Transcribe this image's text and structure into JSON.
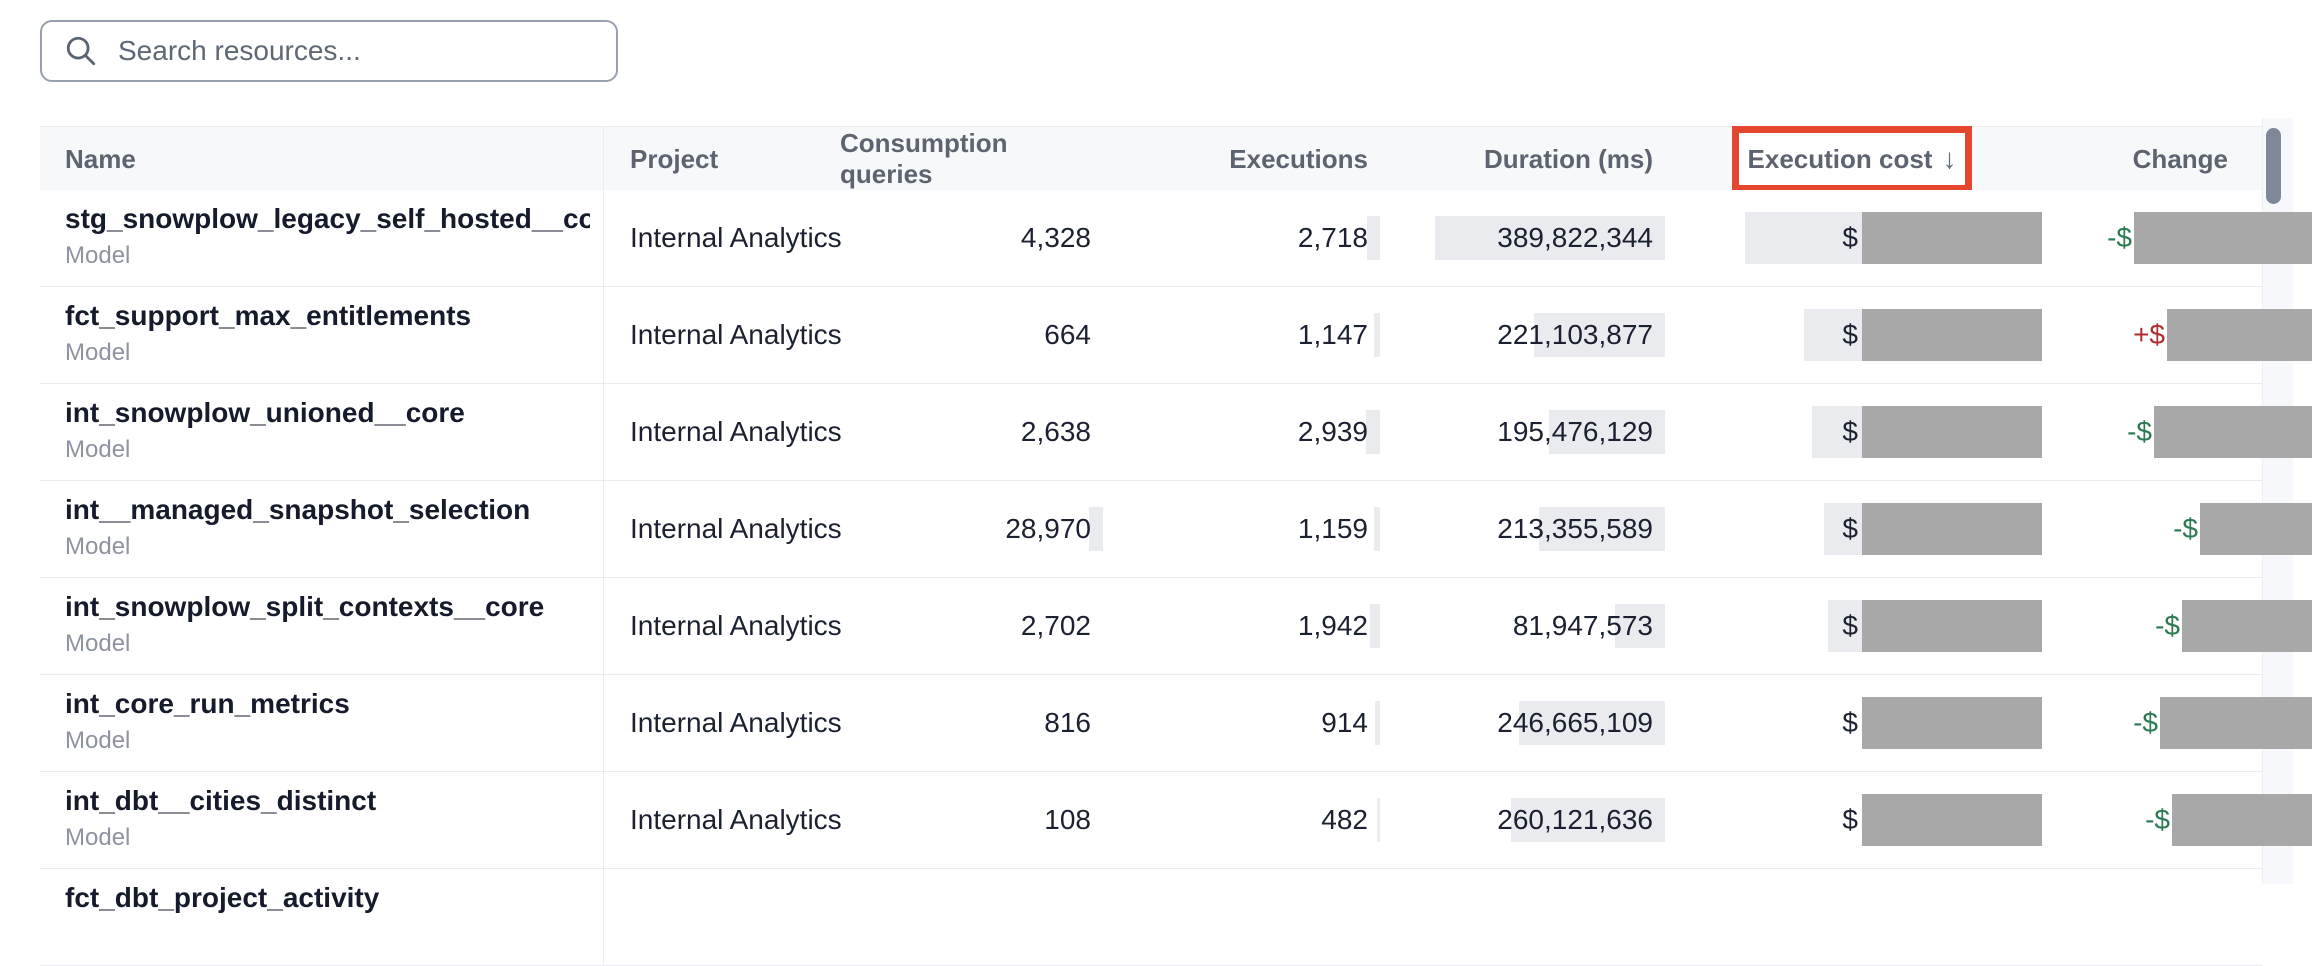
{
  "search": {
    "placeholder": "Search resources...",
    "icon": "search-icon"
  },
  "colors": {
    "annotation_red": "#e5472e",
    "redaction_gray": "#a8a8a8",
    "bar_gray": "#e9ebee",
    "positive_red": "#b02e2e",
    "negative_green": "#2a7a52",
    "header_bg": "#f7f8fa"
  },
  "scrollbar": {
    "thumb": "vertical-scrollbar-thumb"
  },
  "table": {
    "columns": [
      {
        "label": "Name"
      },
      {
        "label": "Project"
      },
      {
        "label": "Consumption queries"
      },
      {
        "label": "Executions"
      },
      {
        "label": "Duration (ms)"
      },
      {
        "label": "Execution cost",
        "sort_indicator": "↓",
        "highlighted": true
      },
      {
        "label": "Change"
      }
    ],
    "rows": [
      {
        "name": "stg_snowplow_legacy_self_hosted__cor...",
        "type": "Model",
        "project": "Internal Analytics",
        "consumption_queries": "4,328",
        "executions": "2,718",
        "duration_ms": "389,822,344",
        "cost_prefix": "$",
        "change_prefix": "-$",
        "change_color": "negative_green",
        "bars": {
          "cq": 0,
          "exec": 13,
          "dur": 230,
          "cost": 117,
          "change": 178
        }
      },
      {
        "name": "fct_support_max_entitlements",
        "type": "Model",
        "project": "Internal Analytics",
        "consumption_queries": "664",
        "executions": "1,147",
        "duration_ms": "221,103,877",
        "cost_prefix": "$",
        "change_prefix": "+$",
        "change_color": "positive_red",
        "bars": {
          "cq": 0,
          "exec": 6,
          "dur": 131,
          "cost": 58,
          "change": 145
        }
      },
      {
        "name": "int_snowplow_unioned__core",
        "type": "Model",
        "project": "Internal Analytics",
        "consumption_queries": "2,638",
        "executions": "2,939",
        "duration_ms": "195,476,129",
        "cost_prefix": "$",
        "change_prefix": "-$",
        "change_color": "negative_green",
        "bars": {
          "cq": 0,
          "exec": 14,
          "dur": 116,
          "cost": 50,
          "change": 158
        }
      },
      {
        "name": "int__managed_snapshot_selection",
        "type": "Model",
        "project": "Internal Analytics",
        "consumption_queries": "28,970",
        "executions": "1,159",
        "duration_ms": "213,355,589",
        "cost_prefix": "$",
        "change_prefix": "-$",
        "change_color": "negative_green",
        "bars": {
          "cq": 14,
          "exec": 6,
          "dur": 126,
          "cost": 38,
          "change": 112
        }
      },
      {
        "name": "int_snowplow_split_contexts__core",
        "type": "Model",
        "project": "Internal Analytics",
        "consumption_queries": "2,702",
        "executions": "1,942",
        "duration_ms": "81,947,573",
        "cost_prefix": "$",
        "change_prefix": "-$",
        "change_color": "negative_green",
        "bars": {
          "cq": 0,
          "exec": 10,
          "dur": 50,
          "cost": 34,
          "change": 130
        }
      },
      {
        "name": "int_core_run_metrics",
        "type": "Model",
        "project": "Internal Analytics",
        "consumption_queries": "816",
        "executions": "914",
        "duration_ms": "246,665,109",
        "cost_prefix": "$",
        "change_prefix": "-$",
        "change_color": "negative_green",
        "bars": {
          "cq": 0,
          "exec": 5,
          "dur": 146,
          "cost": 0,
          "change": 152
        }
      },
      {
        "name": "int_dbt__cities_distinct",
        "type": "Model",
        "project": "Internal Analytics",
        "consumption_queries": "108",
        "executions": "482",
        "duration_ms": "260,121,636",
        "cost_prefix": "$",
        "change_prefix": "-$",
        "change_color": "negative_green",
        "bars": {
          "cq": 0,
          "exec": 3,
          "dur": 154,
          "cost": 0,
          "change": 140
        }
      },
      {
        "name": "fct_dbt_project_activity"
      }
    ]
  }
}
